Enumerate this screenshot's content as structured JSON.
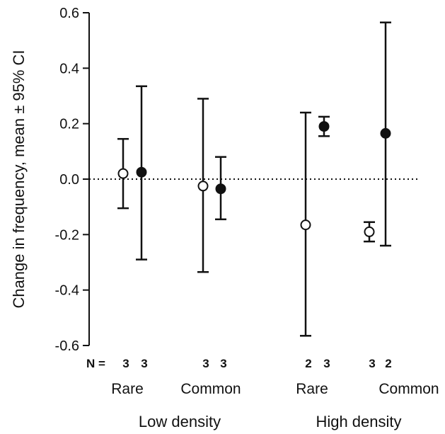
{
  "chart_data": {
    "type": "scatter",
    "ylabel": "Change in frequency, mean ± 95% CI",
    "ylim": [
      -0.6,
      0.6
    ],
    "yticks": [
      "0.6",
      "0.4",
      "0.2",
      "0.0",
      "-0.2",
      "-0.4",
      "-0.6"
    ],
    "reference_line": {
      "y": 0.0,
      "style": "dotted"
    },
    "groups": [
      "Low density",
      "High density"
    ],
    "categories": [
      "Rare",
      "Common",
      "Rare",
      "Common"
    ],
    "n_prefix": "N =",
    "series": [
      {
        "marker": "open-circle",
        "points": [
          {
            "category": 0,
            "mean": 0.02,
            "lower": -0.105,
            "upper": 0.145,
            "n": "3"
          },
          {
            "category": 1,
            "mean": -0.025,
            "lower": -0.335,
            "upper": 0.29,
            "n": "3"
          },
          {
            "category": 2,
            "mean": -0.165,
            "lower": -0.565,
            "upper": 0.24,
            "n": "2"
          },
          {
            "category": 3,
            "mean": -0.19,
            "lower": -0.225,
            "upper": -0.155,
            "n": "3"
          }
        ]
      },
      {
        "marker": "filled-circle",
        "points": [
          {
            "category": 0,
            "mean": 0.025,
            "lower": -0.29,
            "upper": 0.335,
            "n": "3"
          },
          {
            "category": 1,
            "mean": -0.035,
            "lower": -0.145,
            "upper": 0.08,
            "n": "3"
          },
          {
            "category": 2,
            "mean": 0.19,
            "lower": 0.155,
            "upper": 0.225,
            "n": "3"
          },
          {
            "category": 3,
            "mean": 0.165,
            "lower": -0.24,
            "upper": 0.565,
            "n": "2"
          }
        ]
      }
    ]
  }
}
